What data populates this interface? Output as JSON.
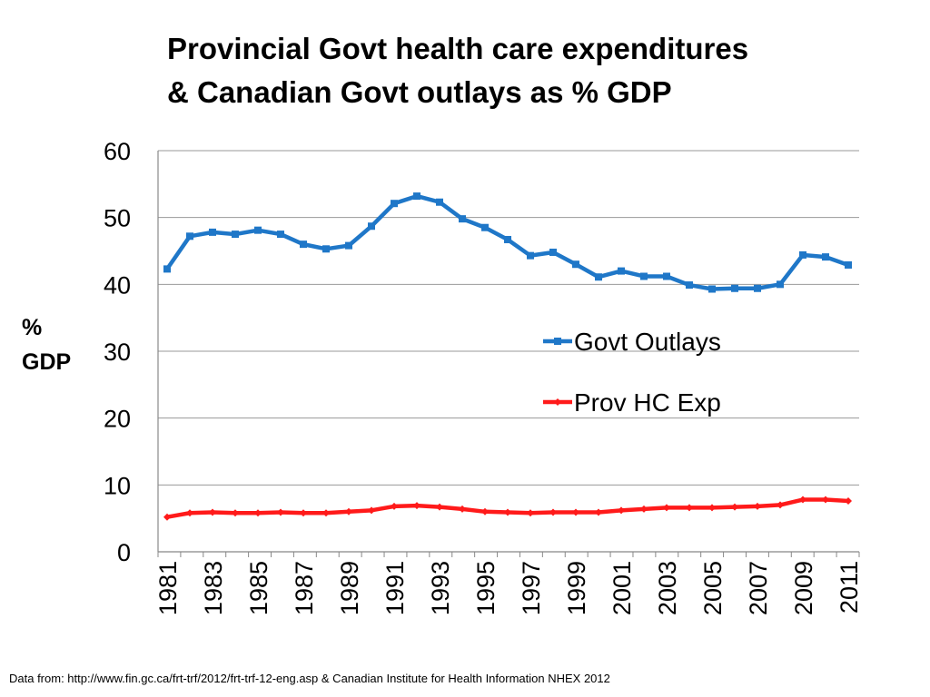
{
  "title_line1": "Provincial Govt health care expenditures",
  "title_line2": "& Canadian Govt outlays as % GDP",
  "ylabel_line1": "%",
  "ylabel_line2": "GDP",
  "source": "Data from: http://www.fin.gc.ca/frt-trf/2012/frt-trf-12-eng.asp &  Canadian Institute for Health Information NHEX 2012",
  "colors": {
    "outlays": "#1f77c8",
    "hc": "#ff1a1a",
    "grid": "#9a9a9a"
  },
  "chart_data": {
    "type": "line",
    "title": "Provincial Govt health care expenditures & Canadian Govt outlays as % GDP",
    "xlabel": "",
    "ylabel": "% GDP",
    "ylim": [
      0,
      60
    ],
    "yticks": [
      0,
      10,
      20,
      30,
      40,
      50,
      60
    ],
    "grid": true,
    "legend": "center-right",
    "x": [
      1981,
      1982,
      1983,
      1984,
      1985,
      1986,
      1987,
      1988,
      1989,
      1990,
      1991,
      1992,
      1993,
      1994,
      1995,
      1996,
      1997,
      1998,
      1999,
      2000,
      2001,
      2002,
      2003,
      2004,
      2005,
      2006,
      2007,
      2008,
      2009,
      2010,
      2011
    ],
    "xtick_labels": [
      "1981",
      "1983",
      "1985",
      "1987",
      "1989",
      "1991",
      "1993",
      "1995",
      "1997",
      "1999",
      "2001",
      "2003",
      "2005",
      "2007",
      "2009",
      "2011"
    ],
    "series": [
      {
        "name": "Govt Outlays",
        "values": [
          42.3,
          47.2,
          47.8,
          47.5,
          48.1,
          47.5,
          46.0,
          45.3,
          45.8,
          48.7,
          52.1,
          53.2,
          52.3,
          49.8,
          48.5,
          46.7,
          44.3,
          44.8,
          43.0,
          41.1,
          42.0,
          41.2,
          41.2,
          39.9,
          39.3,
          39.4,
          39.4,
          40.0,
          44.4,
          44.1,
          42.9
        ]
      },
      {
        "name": "Prov HC Exp",
        "values": [
          5.2,
          5.8,
          5.9,
          5.8,
          5.8,
          5.9,
          5.8,
          5.8,
          6.0,
          6.2,
          6.8,
          6.9,
          6.7,
          6.4,
          6.0,
          5.9,
          5.8,
          5.9,
          5.9,
          5.9,
          6.2,
          6.4,
          6.6,
          6.6,
          6.6,
          6.7,
          6.8,
          7.0,
          7.8,
          7.8,
          7.6
        ]
      }
    ]
  }
}
